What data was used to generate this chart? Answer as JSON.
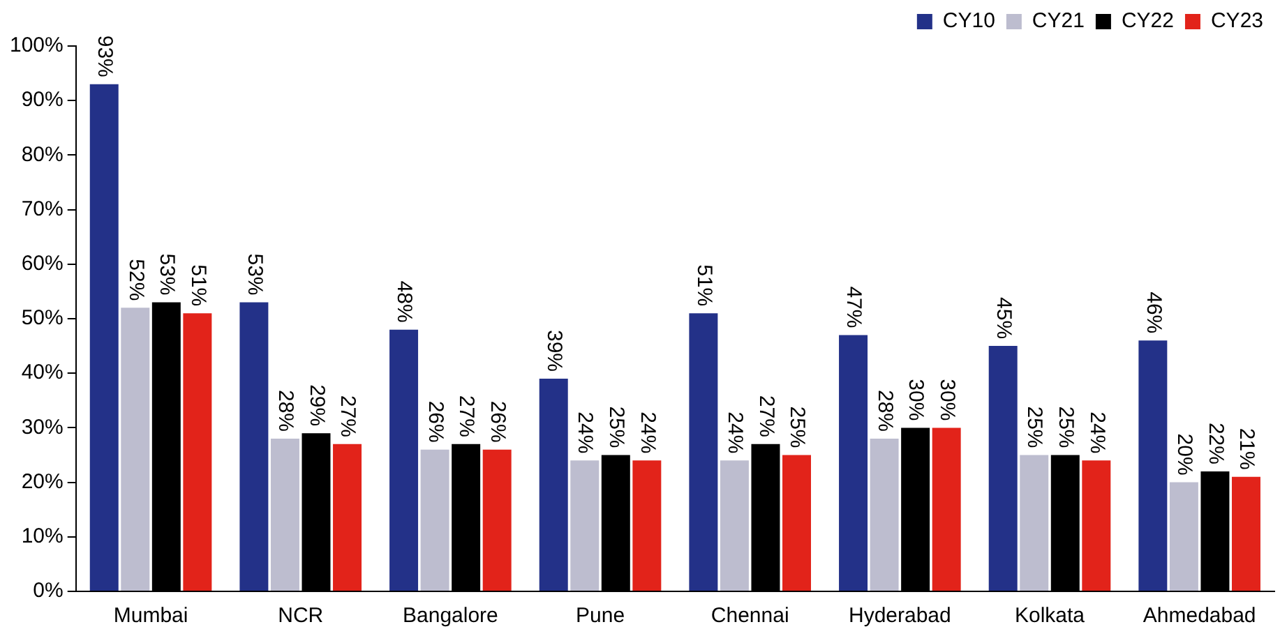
{
  "chart_data": {
    "type": "bar",
    "categories": [
      "Mumbai",
      "NCR",
      "Bangalore",
      "Pune",
      "Chennai",
      "Hyderabad",
      "Kolkata",
      "Ahmedabad"
    ],
    "series": [
      {
        "name": "CY10",
        "color": "#233188",
        "values": [
          93,
          53,
          48,
          39,
          51,
          47,
          45,
          46
        ],
        "value_labels": [
          "93%",
          "53%",
          "48%",
          "39%",
          "51%",
          "47%",
          "45%",
          "46%"
        ]
      },
      {
        "name": "CY21",
        "color": "#bdbdcf",
        "values": [
          52,
          28,
          26,
          24,
          24,
          28,
          25,
          20
        ],
        "value_labels": [
          "52%",
          "28%",
          "26%",
          "24%",
          "24%",
          "28%",
          "25%",
          "20%"
        ]
      },
      {
        "name": "CY22",
        "color": "#000000",
        "values": [
          53,
          29,
          27,
          25,
          27,
          30,
          25,
          22
        ],
        "value_labels": [
          "53%",
          "29%",
          "27%",
          "25%",
          "27%",
          "30%",
          "25%",
          "22%"
        ]
      },
      {
        "name": "CY23",
        "color": "#e2231a",
        "values": [
          51,
          27,
          26,
          24,
          25,
          30,
          24,
          21
        ],
        "value_labels": [
          "51%",
          "27%",
          "26%",
          "24%",
          "25%",
          "30%",
          "24%",
          "21%"
        ]
      }
    ],
    "ylim": [
      0,
      100
    ],
    "yticks": [
      {
        "value": 0,
        "label": "0%"
      },
      {
        "value": 10,
        "label": "10%"
      },
      {
        "value": 20,
        "label": "20%"
      },
      {
        "value": 30,
        "label": "30%"
      },
      {
        "value": 40,
        "label": "40%"
      },
      {
        "value": 50,
        "label": "50%"
      },
      {
        "value": 60,
        "label": "60%"
      },
      {
        "value": 70,
        "label": "70%"
      },
      {
        "value": 80,
        "label": "80%"
      },
      {
        "value": 90,
        "label": "90%"
      },
      {
        "value": 100,
        "label": "100%"
      }
    ],
    "grid": false,
    "legend": "top right"
  }
}
